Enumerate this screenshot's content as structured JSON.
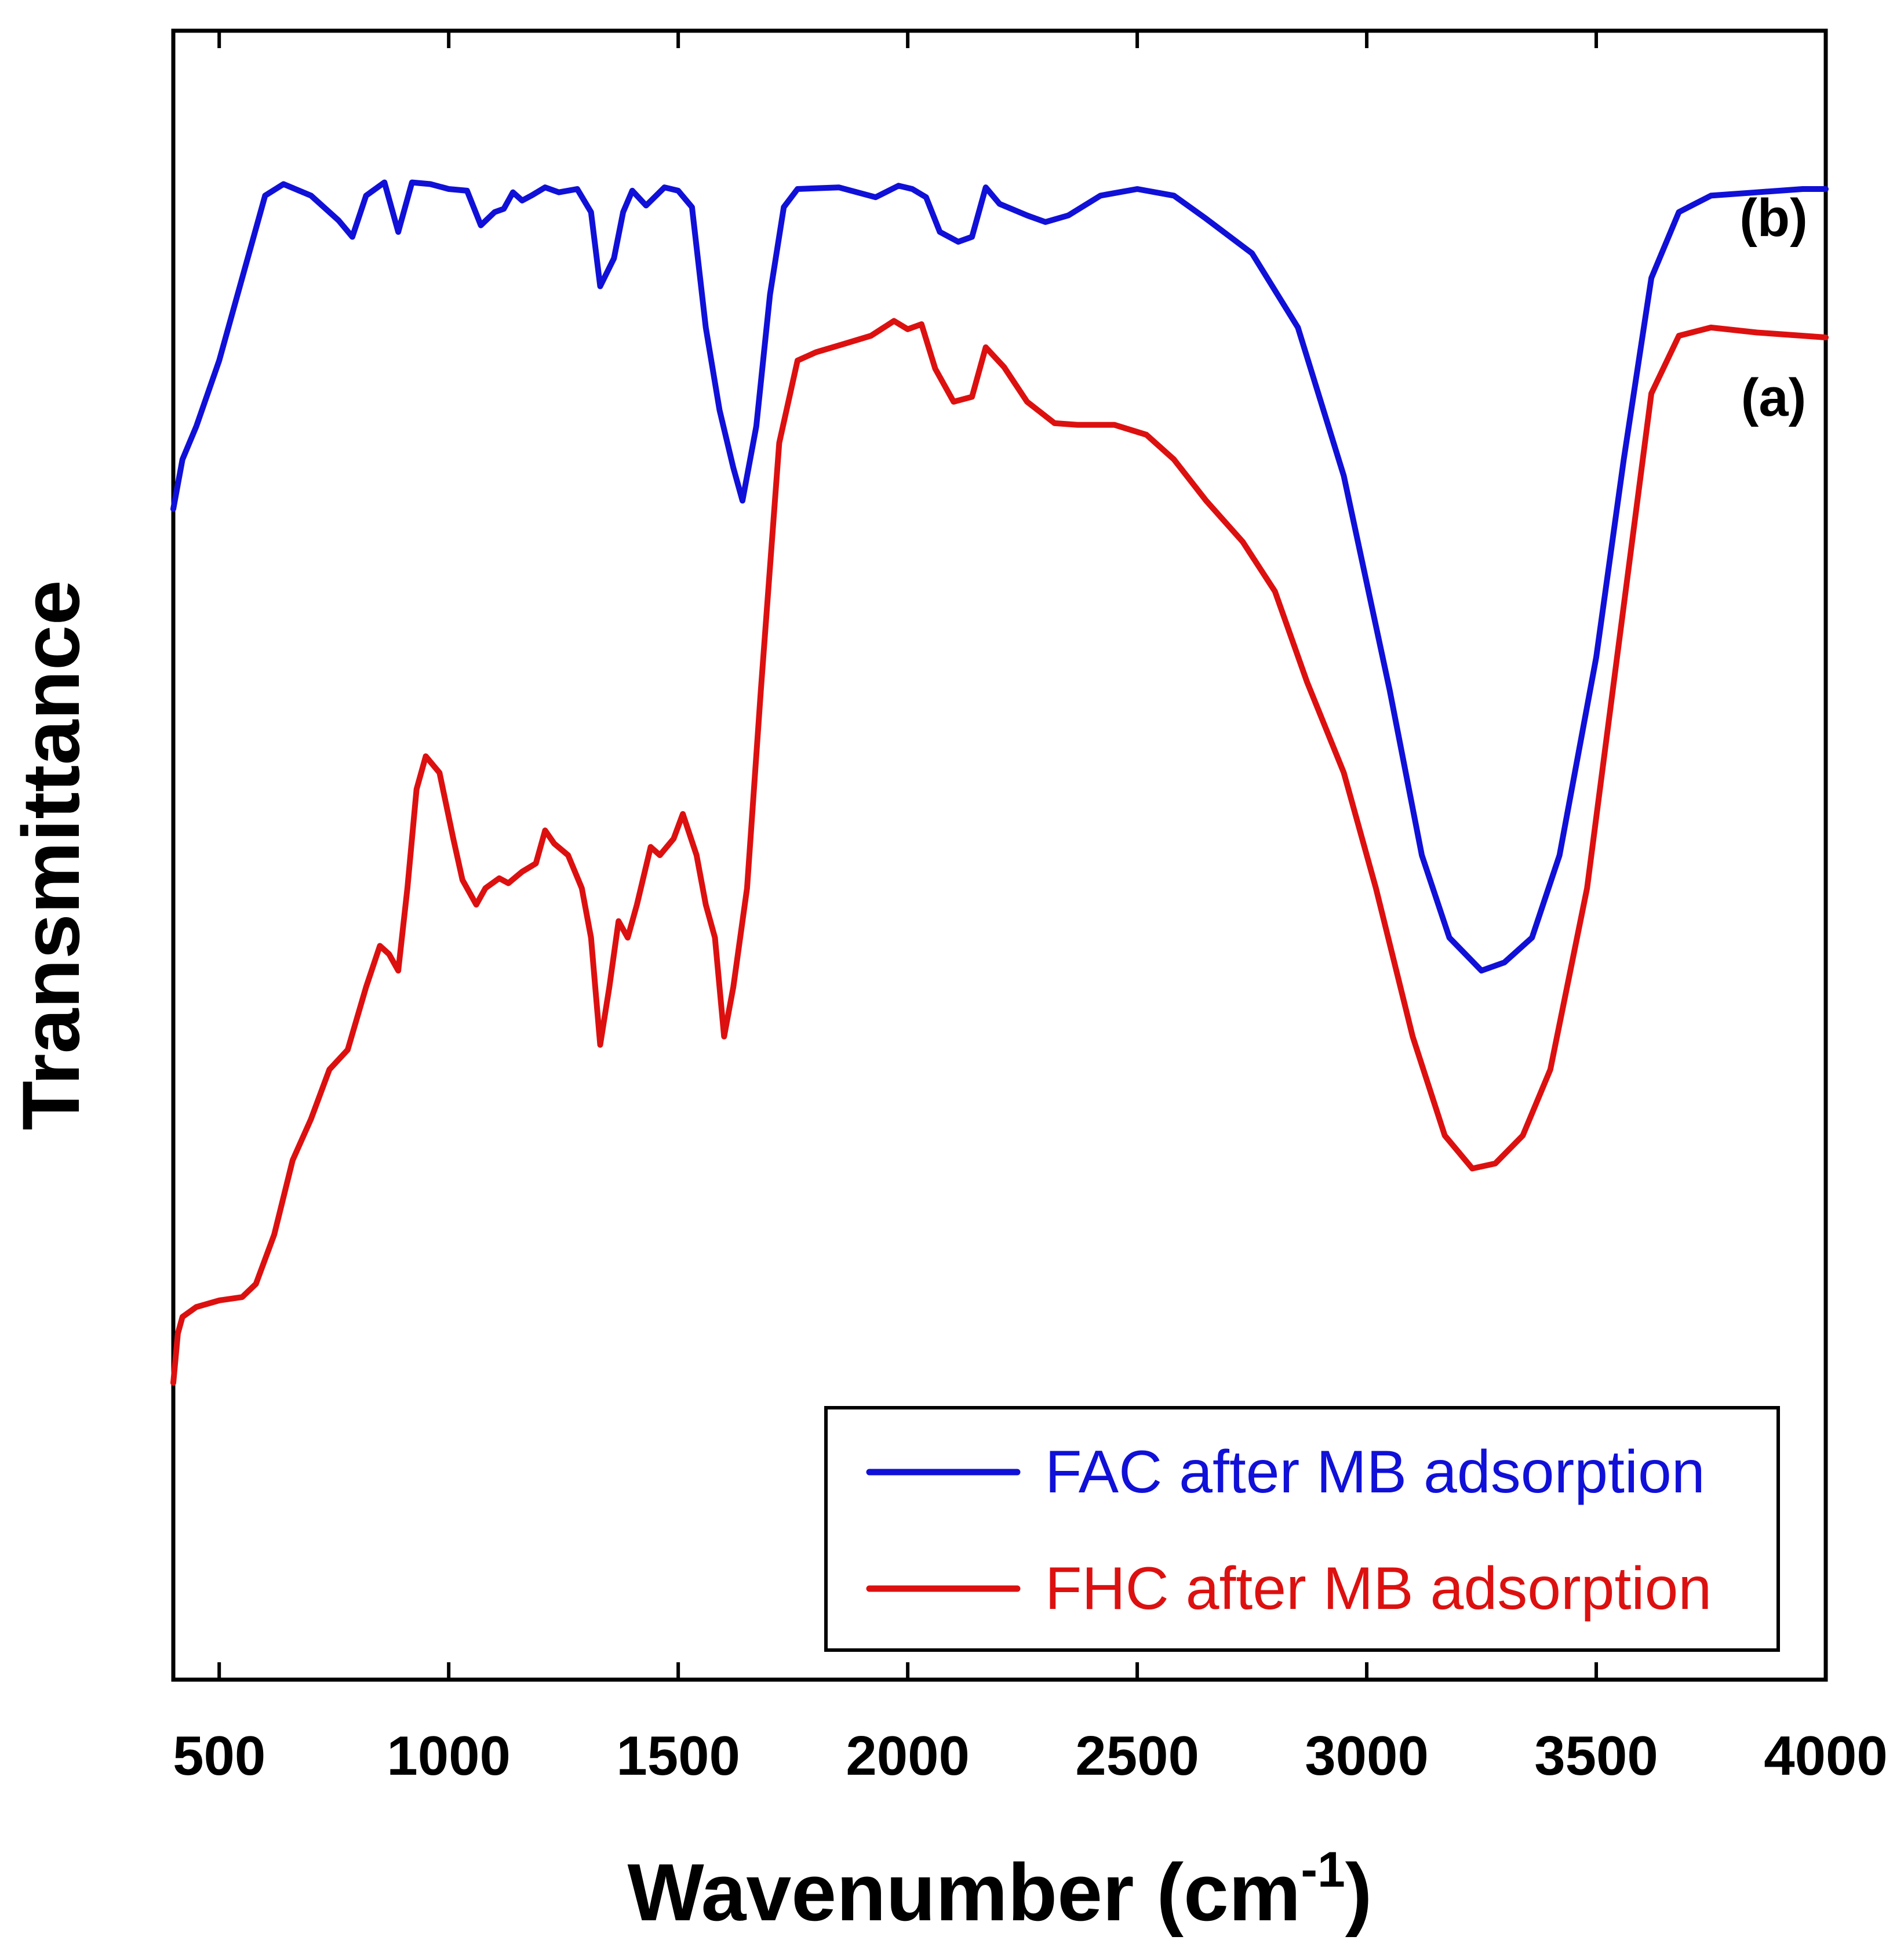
{
  "chart_data": {
    "type": "line",
    "title": "",
    "xlabel": "Wavenumber (cm",
    "xlabel_sup": "-1",
    "xlabel_close": ")",
    "ylabel": "Transmittance",
    "xlim": [
      400,
      4000
    ],
    "ylim": [
      0,
      100
    ],
    "x_ticks": [
      500,
      1000,
      1500,
      2000,
      2500,
      3000,
      3500,
      4000
    ],
    "x_tick_labels": [
      "500",
      "1000",
      "1500",
      "2000",
      "2500",
      "3000",
      "3500",
      "4000"
    ],
    "y_ticks_shown": false,
    "legend_position": "bottom-right",
    "series": [
      {
        "name": "FAC after MB adsorption",
        "curve_label": "(b)",
        "color": "#1010d8",
        "points": [
          [
            400,
            71
          ],
          [
            420,
            74
          ],
          [
            450,
            76
          ],
          [
            500,
            80
          ],
          [
            550,
            85
          ],
          [
            600,
            90
          ],
          [
            640,
            90.7
          ],
          [
            700,
            90
          ],
          [
            760,
            88.5
          ],
          [
            790,
            87.5
          ],
          [
            820,
            90
          ],
          [
            860,
            90.8
          ],
          [
            890,
            87.8
          ],
          [
            920,
            90.8
          ],
          [
            960,
            90.7
          ],
          [
            1000,
            90.4
          ],
          [
            1040,
            90.3
          ],
          [
            1070,
            88.2
          ],
          [
            1100,
            89
          ],
          [
            1120,
            89.2
          ],
          [
            1140,
            90.2
          ],
          [
            1160,
            89.7
          ],
          [
            1180,
            90
          ],
          [
            1210,
            90.5
          ],
          [
            1240,
            90.2
          ],
          [
            1280,
            90.4
          ],
          [
            1310,
            89
          ],
          [
            1330,
            84.5
          ],
          [
            1360,
            86.2
          ],
          [
            1380,
            89
          ],
          [
            1400,
            90.3
          ],
          [
            1430,
            89.4
          ],
          [
            1470,
            90.5
          ],
          [
            1500,
            90.3
          ],
          [
            1530,
            89.3
          ],
          [
            1560,
            82
          ],
          [
            1590,
            77
          ],
          [
            1620,
            73.5
          ],
          [
            1640,
            71.5
          ],
          [
            1670,
            76
          ],
          [
            1700,
            84
          ],
          [
            1730,
            89.3
          ],
          [
            1760,
            90.4
          ],
          [
            1850,
            90.5
          ],
          [
            1930,
            89.9
          ],
          [
            1980,
            90.6
          ],
          [
            2010,
            90.4
          ],
          [
            2040,
            89.9
          ],
          [
            2070,
            87.8
          ],
          [
            2110,
            87.2
          ],
          [
            2140,
            87.5
          ],
          [
            2170,
            90.5
          ],
          [
            2200,
            89.5
          ],
          [
            2260,
            88.8
          ],
          [
            2300,
            88.4
          ],
          [
            2350,
            88.8
          ],
          [
            2420,
            90
          ],
          [
            2500,
            90.4
          ],
          [
            2580,
            90
          ],
          [
            2650,
            88.6
          ],
          [
            2750,
            86.5
          ],
          [
            2850,
            82
          ],
          [
            2950,
            73
          ],
          [
            3050,
            60
          ],
          [
            3120,
            50
          ],
          [
            3180,
            45
          ],
          [
            3250,
            43
          ],
          [
            3300,
            43.5
          ],
          [
            3360,
            45
          ],
          [
            3420,
            50
          ],
          [
            3500,
            62
          ],
          [
            3560,
            74
          ],
          [
            3620,
            85
          ],
          [
            3680,
            89
          ],
          [
            3750,
            90
          ],
          [
            3850,
            90.2
          ],
          [
            3950,
            90.4
          ],
          [
            4000,
            90.4
          ]
        ]
      },
      {
        "name": "FHC after MB adsorption",
        "curve_label": "(a)",
        "color": "#dd1010",
        "points": [
          [
            400,
            18
          ],
          [
            410,
            21
          ],
          [
            420,
            22
          ],
          [
            450,
            22.6
          ],
          [
            500,
            23
          ],
          [
            550,
            23.2
          ],
          [
            580,
            24
          ],
          [
            620,
            27
          ],
          [
            660,
            31.5
          ],
          [
            700,
            34
          ],
          [
            740,
            37
          ],
          [
            780,
            38.2
          ],
          [
            820,
            42
          ],
          [
            850,
            44.5
          ],
          [
            870,
            44
          ],
          [
            890,
            43
          ],
          [
            910,
            48
          ],
          [
            930,
            54
          ],
          [
            950,
            56
          ],
          [
            980,
            55
          ],
          [
            1010,
            51
          ],
          [
            1030,
            48.5
          ],
          [
            1060,
            47
          ],
          [
            1080,
            48
          ],
          [
            1110,
            48.6
          ],
          [
            1130,
            48.3
          ],
          [
            1160,
            49
          ],
          [
            1190,
            49.5
          ],
          [
            1210,
            51.5
          ],
          [
            1230,
            50.7
          ],
          [
            1260,
            50
          ],
          [
            1290,
            48
          ],
          [
            1310,
            45
          ],
          [
            1330,
            38.5
          ],
          [
            1350,
            42
          ],
          [
            1370,
            46
          ],
          [
            1390,
            45
          ],
          [
            1410,
            47
          ],
          [
            1440,
            50.5
          ],
          [
            1460,
            50
          ],
          [
            1490,
            51
          ],
          [
            1510,
            52.5
          ],
          [
            1540,
            50
          ],
          [
            1560,
            47
          ],
          [
            1580,
            45
          ],
          [
            1600,
            39
          ],
          [
            1620,
            42
          ],
          [
            1650,
            48
          ],
          [
            1680,
            60
          ],
          [
            1720,
            75
          ],
          [
            1760,
            80
          ],
          [
            1800,
            80.5
          ],
          [
            1860,
            81
          ],
          [
            1920,
            81.5
          ],
          [
            1970,
            82.4
          ],
          [
            2000,
            81.9
          ],
          [
            2030,
            82.2
          ],
          [
            2060,
            79.5
          ],
          [
            2100,
            77.5
          ],
          [
            2140,
            77.8
          ],
          [
            2170,
            80.8
          ],
          [
            2210,
            79.6
          ],
          [
            2260,
            77.5
          ],
          [
            2320,
            76.2
          ],
          [
            2370,
            76.1
          ],
          [
            2450,
            76.1
          ],
          [
            2520,
            75.5
          ],
          [
            2580,
            74
          ],
          [
            2650,
            71.5
          ],
          [
            2730,
            69
          ],
          [
            2800,
            66
          ],
          [
            2870,
            60.5
          ],
          [
            2950,
            55
          ],
          [
            3020,
            48
          ],
          [
            3100,
            39
          ],
          [
            3170,
            33
          ],
          [
            3230,
            31
          ],
          [
            3280,
            31.3
          ],
          [
            3340,
            33
          ],
          [
            3400,
            37
          ],
          [
            3480,
            48
          ],
          [
            3550,
            63
          ],
          [
            3620,
            78
          ],
          [
            3680,
            81.5
          ],
          [
            3750,
            82
          ],
          [
            3850,
            81.7
          ],
          [
            3950,
            81.5
          ],
          [
            4000,
            81.4
          ]
        ]
      }
    ]
  }
}
